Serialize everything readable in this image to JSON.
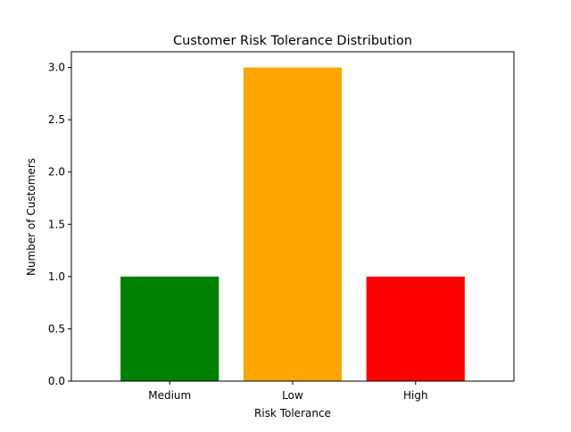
{
  "chart_data": {
    "type": "bar",
    "title": "Customer Risk Tolerance Distribution",
    "xlabel": "Risk Tolerance",
    "ylabel": "Number of Customers",
    "categories": [
      "Medium",
      "Low",
      "High"
    ],
    "values": [
      1,
      3,
      1
    ],
    "colors": [
      "#008000",
      "#ffa500",
      "#ff0000"
    ],
    "ylim": [
      0,
      3.15
    ],
    "yticks": [
      0.0,
      0.5,
      1.0,
      1.5,
      2.0,
      2.5,
      3.0
    ],
    "ytick_labels": [
      "0.0",
      "0.5",
      "1.0",
      "1.5",
      "2.0",
      "2.5",
      "3.0"
    ],
    "grid": false,
    "legend": "none"
  }
}
